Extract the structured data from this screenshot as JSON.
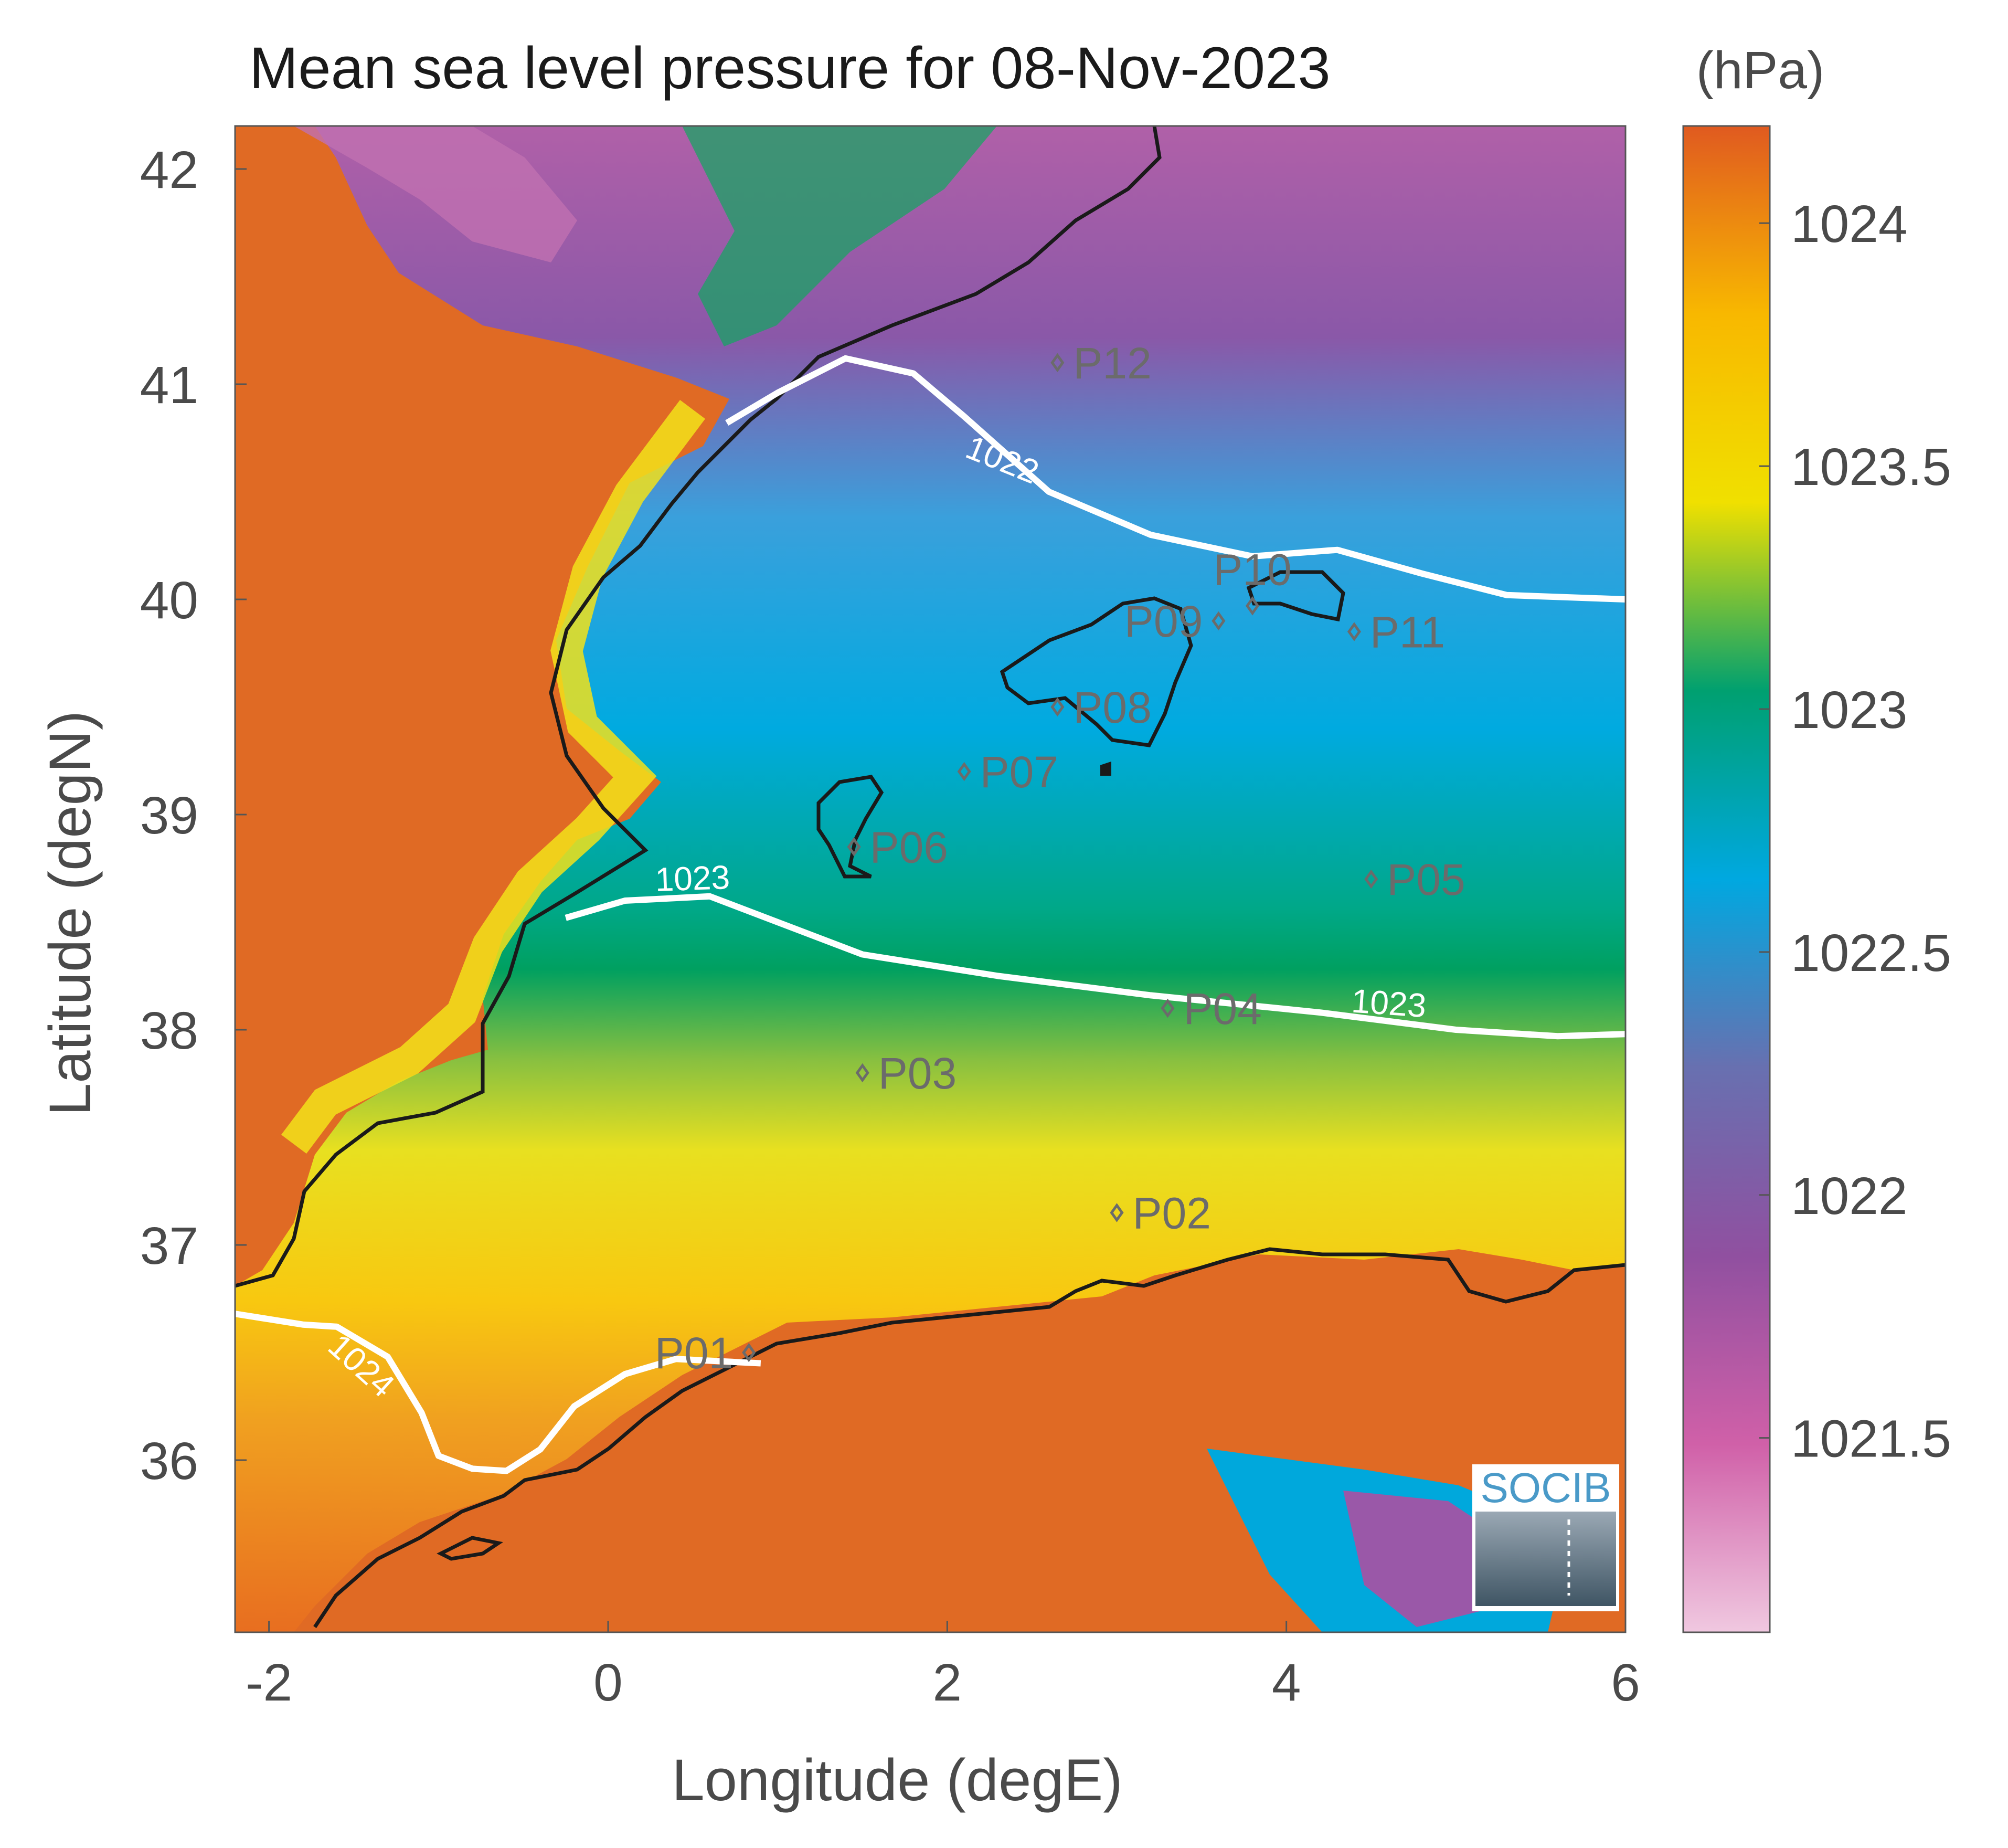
{
  "title": "Mean sea level pressure for 08-Nov-2023",
  "colorbar": {
    "unit": "(hPa)",
    "range": [
      1021.1,
      1024.2
    ],
    "ticks": [
      {
        "value": 1024,
        "label": "1024"
      },
      {
        "value": 1023.5,
        "label": "1023.5"
      },
      {
        "value": 1023,
        "label": "1023"
      },
      {
        "value": 1022.5,
        "label": "1022.5"
      },
      {
        "value": 1022,
        "label": "1022"
      },
      {
        "value": 1021.5,
        "label": "1021.5"
      }
    ],
    "colors": [
      "#f0c8e0",
      "#d060a8",
      "#9050a0",
      "#6870b0",
      "#00a8e0",
      "#00a070",
      "#f0e000",
      "#f8b800",
      "#e05a20"
    ]
  },
  "axes": {
    "xlabel": "Longitude (degE)",
    "ylabel": "Latitude (degN)",
    "xlim": [
      -2.2,
      6
    ],
    "ylim": [
      35.2,
      42.2
    ],
    "xticks": [
      {
        "value": -2,
        "label": "-2"
      },
      {
        "value": 0,
        "label": "0"
      },
      {
        "value": 2,
        "label": "2"
      },
      {
        "value": 4,
        "label": "4"
      },
      {
        "value": 6,
        "label": "6"
      }
    ],
    "yticks": [
      {
        "value": 42,
        "label": "42"
      },
      {
        "value": 41,
        "label": "41"
      },
      {
        "value": 40,
        "label": "40"
      },
      {
        "value": 39,
        "label": "39"
      },
      {
        "value": 38,
        "label": "38"
      },
      {
        "value": 37,
        "label": "37"
      },
      {
        "value": 36,
        "label": "36"
      }
    ]
  },
  "contours": [
    {
      "level": "1024",
      "label_at": [
        -1.5,
        36.4
      ],
      "label_angle": 42,
      "path": [
        [
          -2.2,
          36.68
        ],
        [
          -1.8,
          36.63
        ],
        [
          -1.6,
          36.62
        ],
        [
          -1.3,
          36.48
        ],
        [
          -1.1,
          36.22
        ],
        [
          -1.0,
          36.02
        ],
        [
          -0.8,
          35.96
        ],
        [
          -0.6,
          35.95
        ],
        [
          -0.4,
          36.05
        ],
        [
          -0.2,
          36.25
        ],
        [
          0.1,
          36.4
        ],
        [
          0.4,
          36.47
        ],
        [
          0.9,
          36.45
        ]
      ]
    },
    {
      "level": "1023",
      "label_at": [
        0.5,
        38.65
      ],
      "label_angle": -2,
      "path": [
        [
          -0.25,
          38.52
        ],
        [
          0.1,
          38.6
        ],
        [
          0.6,
          38.62
        ],
        [
          1.0,
          38.5
        ],
        [
          1.5,
          38.35
        ],
        [
          2.3,
          38.25
        ],
        [
          3.2,
          38.16
        ],
        [
          4.2,
          38.08
        ],
        [
          5.0,
          38.0
        ],
        [
          5.6,
          37.97
        ],
        [
          6.0,
          37.98
        ]
      ]
    },
    {
      "level": "1023",
      "label_at": [
        4.6,
        38.07
      ],
      "label_angle": 4,
      "path": []
    },
    {
      "level": "1022",
      "label_at": [
        2.3,
        40.6
      ],
      "label_angle": 22,
      "path": [
        [
          0.7,
          40.82
        ],
        [
          1.0,
          40.96
        ],
        [
          1.4,
          41.12
        ],
        [
          1.8,
          41.05
        ],
        [
          2.1,
          40.85
        ],
        [
          2.6,
          40.5
        ],
        [
          3.2,
          40.3
        ],
        [
          3.8,
          40.2
        ],
        [
          4.3,
          40.23
        ],
        [
          4.8,
          40.12
        ],
        [
          5.3,
          40.02
        ],
        [
          6.0,
          40.0
        ]
      ]
    }
  ],
  "stations": [
    {
      "id": "P01",
      "lon": 0.83,
      "lat": 36.5,
      "label_side": "left"
    },
    {
      "id": "P02",
      "lon": 3.0,
      "lat": 37.15,
      "label_side": "right"
    },
    {
      "id": "P03",
      "lon": 1.5,
      "lat": 37.8,
      "label_side": "right"
    },
    {
      "id": "P04",
      "lon": 3.3,
      "lat": 38.1,
      "label_side": "right"
    },
    {
      "id": "P05",
      "lon": 4.5,
      "lat": 38.7,
      "label_side": "right"
    },
    {
      "id": "P06",
      "lon": 1.45,
      "lat": 38.85,
      "label_side": "right"
    },
    {
      "id": "P07",
      "lon": 2.1,
      "lat": 39.2,
      "label_side": "right"
    },
    {
      "id": "P08",
      "lon": 2.65,
      "lat": 39.5,
      "label_side": "right"
    },
    {
      "id": "P09",
      "lon": 3.6,
      "lat": 39.9,
      "label_side": "left"
    },
    {
      "id": "P10",
      "lon": 3.8,
      "lat": 39.97,
      "label_side": "above"
    },
    {
      "id": "P11",
      "lon": 4.4,
      "lat": 39.85,
      "label_side": "right"
    },
    {
      "id": "P12",
      "lon": 2.65,
      "lat": 41.1,
      "label_side": "right"
    }
  ],
  "logo": {
    "text": "SOCIB"
  }
}
